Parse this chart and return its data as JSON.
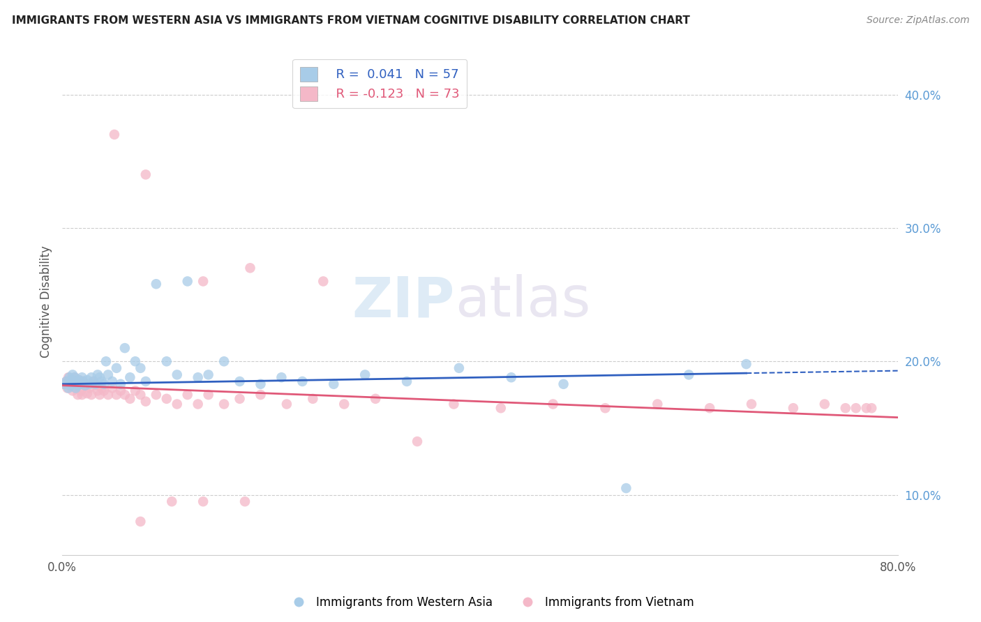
{
  "title": "IMMIGRANTS FROM WESTERN ASIA VS IMMIGRANTS FROM VIETNAM COGNITIVE DISABILITY CORRELATION CHART",
  "source": "Source: ZipAtlas.com",
  "ylabel": "Cognitive Disability",
  "xlim": [
    0.0,
    0.8
  ],
  "ylim": [
    0.055,
    0.435
  ],
  "yticks": [
    0.1,
    0.2,
    0.3,
    0.4
  ],
  "ytick_labels": [
    "10.0%",
    "20.0%",
    "30.0%",
    "40.0%"
  ],
  "legend_blue_r": "R =  0.041",
  "legend_blue_n": "N = 57",
  "legend_pink_r": "R = -0.123",
  "legend_pink_n": "N = 73",
  "blue_color": "#a8cce8",
  "pink_color": "#f4b8c8",
  "blue_line_color": "#3060c0",
  "pink_line_color": "#e05878",
  "blue_line_solid_end": 0.655,
  "blue_line_start_y": 0.183,
  "blue_line_end_y": 0.193,
  "pink_line_start_y": 0.182,
  "pink_line_end_y": 0.158,
  "blue_scatter_x": [
    0.002,
    0.004,
    0.006,
    0.007,
    0.008,
    0.009,
    0.01,
    0.01,
    0.011,
    0.012,
    0.013,
    0.014,
    0.015,
    0.016,
    0.018,
    0.019,
    0.02,
    0.022,
    0.024,
    0.026,
    0.028,
    0.03,
    0.032,
    0.034,
    0.036,
    0.038,
    0.04,
    0.042,
    0.044,
    0.048,
    0.052,
    0.056,
    0.06,
    0.065,
    0.07,
    0.075,
    0.08,
    0.09,
    0.1,
    0.11,
    0.12,
    0.13,
    0.14,
    0.155,
    0.17,
    0.19,
    0.21,
    0.23,
    0.26,
    0.29,
    0.33,
    0.38,
    0.43,
    0.48,
    0.54,
    0.6,
    0.655
  ],
  "blue_scatter_y": [
    0.183,
    0.185,
    0.18,
    0.188,
    0.182,
    0.186,
    0.183,
    0.19,
    0.185,
    0.188,
    0.18,
    0.185,
    0.182,
    0.186,
    0.183,
    0.188,
    0.185,
    0.182,
    0.186,
    0.183,
    0.188,
    0.185,
    0.183,
    0.19,
    0.188,
    0.185,
    0.183,
    0.2,
    0.19,
    0.185,
    0.195,
    0.183,
    0.21,
    0.188,
    0.2,
    0.195,
    0.185,
    0.258,
    0.2,
    0.19,
    0.26,
    0.188,
    0.19,
    0.2,
    0.185,
    0.183,
    0.188,
    0.185,
    0.183,
    0.19,
    0.185,
    0.195,
    0.188,
    0.183,
    0.105,
    0.19,
    0.198
  ],
  "pink_scatter_x": [
    0.002,
    0.004,
    0.005,
    0.006,
    0.007,
    0.008,
    0.009,
    0.01,
    0.011,
    0.012,
    0.013,
    0.014,
    0.015,
    0.016,
    0.017,
    0.018,
    0.019,
    0.02,
    0.022,
    0.024,
    0.026,
    0.028,
    0.03,
    0.032,
    0.034,
    0.036,
    0.038,
    0.04,
    0.044,
    0.048,
    0.052,
    0.056,
    0.06,
    0.065,
    0.07,
    0.075,
    0.08,
    0.09,
    0.1,
    0.11,
    0.12,
    0.13,
    0.14,
    0.155,
    0.17,
    0.19,
    0.215,
    0.24,
    0.27,
    0.3,
    0.34,
    0.375,
    0.42,
    0.47,
    0.52,
    0.57,
    0.62,
    0.66,
    0.7,
    0.73,
    0.75,
    0.76,
    0.77,
    0.775,
    0.05,
    0.08,
    0.135,
    0.18,
    0.25,
    0.135,
    0.175,
    0.105,
    0.075
  ],
  "pink_scatter_y": [
    0.183,
    0.185,
    0.18,
    0.188,
    0.182,
    0.186,
    0.183,
    0.178,
    0.185,
    0.188,
    0.18,
    0.185,
    0.175,
    0.186,
    0.183,
    0.178,
    0.175,
    0.185,
    0.182,
    0.176,
    0.18,
    0.175,
    0.185,
    0.182,
    0.178,
    0.175,
    0.18,
    0.178,
    0.175,
    0.18,
    0.175,
    0.178,
    0.175,
    0.172,
    0.178,
    0.175,
    0.17,
    0.175,
    0.172,
    0.168,
    0.175,
    0.168,
    0.175,
    0.168,
    0.172,
    0.175,
    0.168,
    0.172,
    0.168,
    0.172,
    0.14,
    0.168,
    0.165,
    0.168,
    0.165,
    0.168,
    0.165,
    0.168,
    0.165,
    0.168,
    0.165,
    0.165,
    0.165,
    0.165,
    0.37,
    0.34,
    0.26,
    0.27,
    0.26,
    0.095,
    0.095,
    0.095,
    0.08
  ]
}
